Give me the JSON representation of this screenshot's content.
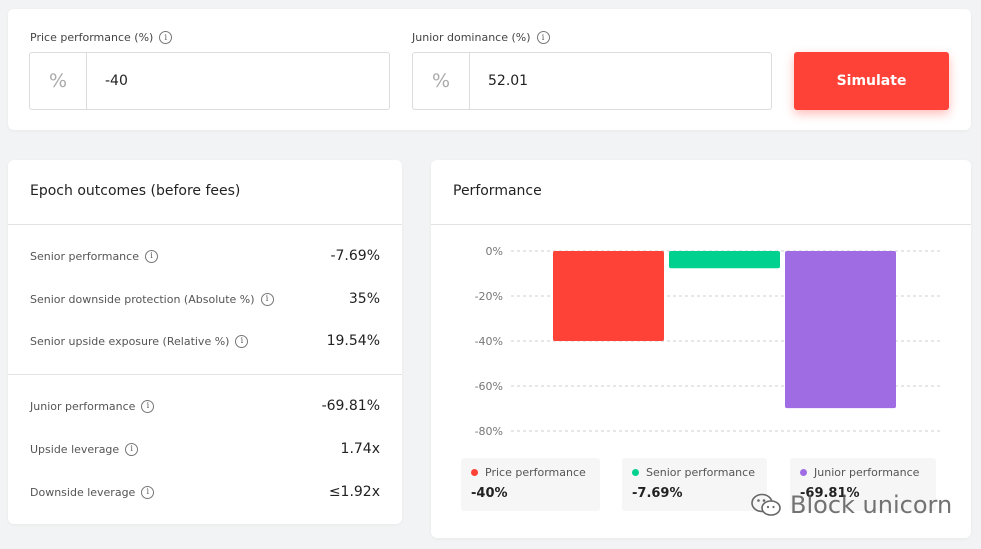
{
  "inputs": {
    "price": {
      "label": "Price performance (%)",
      "prefix": "%",
      "value": "-40"
    },
    "junior": {
      "label": "Junior dominance (%)",
      "prefix": "%",
      "value": "52.01"
    },
    "simulate_label": "Simulate"
  },
  "outcomes": {
    "title": "Epoch outcomes (before fees)",
    "senior_rows": [
      {
        "label": "Senior performance",
        "value": "-7.69%"
      },
      {
        "label": "Senior downside protection (Absolute %)",
        "value": "35%"
      },
      {
        "label": "Senior upside exposure (Relative %)",
        "value": "19.54%"
      }
    ],
    "junior_rows": [
      {
        "label": "Junior performance",
        "value": "-69.81%"
      },
      {
        "label": "Upside leverage",
        "value": "1.74x"
      },
      {
        "label": "Downside leverage",
        "value": "≤1.92x"
      }
    ]
  },
  "performance": {
    "title": "Performance",
    "legend": [
      {
        "name": "Price performance",
        "value": "-40%",
        "color": "#ff4238"
      },
      {
        "name": "Senior performance",
        "value": "-7.69%",
        "color": "#00d18f"
      },
      {
        "name": "Junior performance",
        "value": "-69.81%",
        "color": "#9f6ce3"
      }
    ]
  },
  "chart_data": {
    "type": "bar",
    "categories": [
      "Price performance",
      "Senior performance",
      "Junior performance"
    ],
    "values": [
      -40,
      -7.69,
      -69.81
    ],
    "colors": [
      "#ff4238",
      "#00d18f",
      "#9f6ce3"
    ],
    "yticks": [
      "0%",
      "-20%",
      "-40%",
      "-60%",
      "-80%"
    ],
    "ylim": [
      -80,
      0
    ],
    "grid": true
  },
  "watermark": {
    "text": "Block unicorn",
    "icon": "wechat-icon"
  },
  "icons": {
    "info": "info-icon"
  }
}
